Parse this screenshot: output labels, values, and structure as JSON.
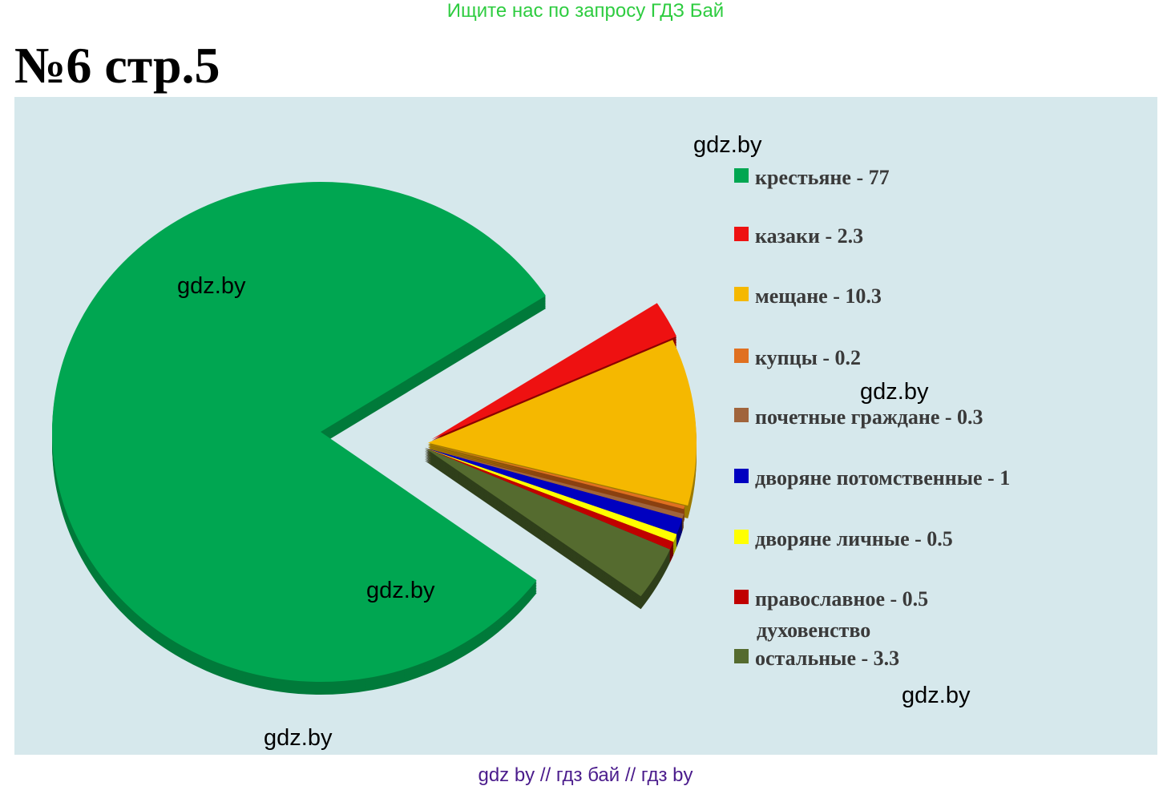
{
  "header": {
    "banner": "Ищите нас по запросу ГДЗ Бай",
    "title": "№6 стр.5"
  },
  "watermarks": [
    "gdz.by",
    "gdz.by",
    "gdz.by",
    "gdz.by",
    "gdz.by",
    "gdz.by"
  ],
  "footer": {
    "text": "gdz by  //  гдз бай  //  гдз by"
  },
  "colors": {
    "background": "#d6e8ec",
    "banner": "#2ecc40",
    "footer": "#4b1c8c"
  },
  "chart_data": {
    "type": "pie",
    "style": "3d-exploded",
    "legend_placement": "right",
    "slices": [
      {
        "label": "крестьяне",
        "value": 77,
        "legend": "крестьяне  - 77",
        "color": "#00a651",
        "side": "#007a3a"
      },
      {
        "label": "казаки",
        "value": 2.3,
        "legend": "казаки  - 2.3",
        "color": "#ee1111",
        "side": "#8b0000"
      },
      {
        "label": "мещане",
        "value": 10.3,
        "legend": "мещане  - 10.3",
        "color": "#f5b800",
        "side": "#9c7a00"
      },
      {
        "label": "купцы",
        "value": 0.2,
        "legend": "купцы  - 0.2",
        "color": "#e07020",
        "side": "#8a4010"
      },
      {
        "label": "почетные граждане",
        "value": 0.3,
        "legend": "почетные граждане  - 0.3",
        "color": "#a0643c",
        "side": "#603a20"
      },
      {
        "label": "дворяне потомственные",
        "value": 1,
        "legend": "дворяне потомственные  - 1",
        "color": "#0000c0",
        "side": "#000070"
      },
      {
        "label": "дворяне личные",
        "value": 0.5,
        "legend": "дворяне личные  - 0.5",
        "color": "#ffff00",
        "side": "#a0a000"
      },
      {
        "label": "православное духовенство",
        "value": 0.5,
        "legend": "православное  - 0.5",
        "legend_line2": "духовенство",
        "color": "#c00000",
        "side": "#700000"
      },
      {
        "label": "остальные",
        "value": 3.3,
        "legend": "остальные   - 3.3",
        "color": "#556b2f",
        "side": "#2f3f1a"
      }
    ]
  }
}
